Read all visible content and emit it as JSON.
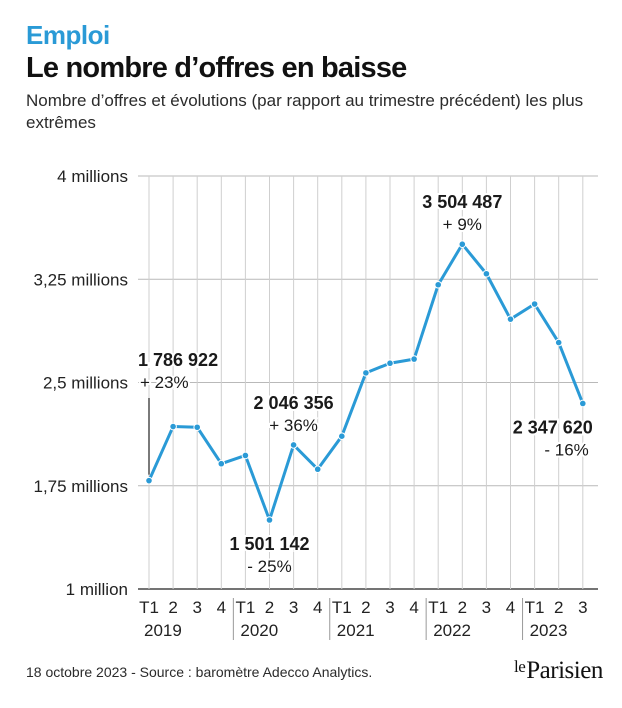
{
  "header": {
    "kicker": "Emploi",
    "title": "Le nombre d’offres en baisse",
    "subtitle": "Nombre d’offres et évolutions (par rapport au trimestre précédent) les plus extrêmes"
  },
  "chart_data": {
    "type": "line",
    "ylim": [
      1000000,
      4000000
    ],
    "yticks": [
      {
        "value": 4000000,
        "label": "4 millions"
      },
      {
        "value": 3250000,
        "label": "3,25 millions"
      },
      {
        "value": 2500000,
        "label": "2,5 millions"
      },
      {
        "value": 1750000,
        "label": "1,75 millions"
      },
      {
        "value": 1000000,
        "label": "1 million"
      }
    ],
    "quarter_labels": [
      "T1",
      "2",
      "3",
      "4",
      "T1",
      "2",
      "3",
      "4",
      "T1",
      "2",
      "3",
      "4",
      "T1",
      "2",
      "3",
      "4",
      "T1",
      "2",
      "3"
    ],
    "years": [
      {
        "label": "2019",
        "start_index": 0
      },
      {
        "label": "2020",
        "start_index": 4
      },
      {
        "label": "2021",
        "start_index": 8
      },
      {
        "label": "2022",
        "start_index": 12
      },
      {
        "label": "2023",
        "start_index": 16
      }
    ],
    "values": [
      1786922,
      2180000,
      2175000,
      1910000,
      1970000,
      1501142,
      2046356,
      1870000,
      2110000,
      2570000,
      2640000,
      2670000,
      3210000,
      3504487,
      3290000,
      2960000,
      3070000,
      2790000,
      2347620
    ],
    "line_color": "#2a9ad6",
    "grid": true,
    "annotations": [
      {
        "index": 0,
        "value_label": "1 786 922",
        "change_label": "+ 23%",
        "position": "above-leader"
      },
      {
        "index": 5,
        "value_label": "1 501 142",
        "change_label": "- 25%",
        "position": "below"
      },
      {
        "index": 6,
        "value_label": "2 046 356",
        "change_label": "+ 36%",
        "position": "above"
      },
      {
        "index": 13,
        "value_label": "3 504 487",
        "change_label": "+ 9%",
        "position": "above"
      },
      {
        "index": 18,
        "value_label": "2 347 620",
        "change_label": "- 16%",
        "position": "below-left"
      }
    ]
  },
  "footer": {
    "source": "18 octobre 2023 - Source : baromètre Adecco Analytics.",
    "logo_le": "le",
    "logo_name": "Parisien"
  }
}
